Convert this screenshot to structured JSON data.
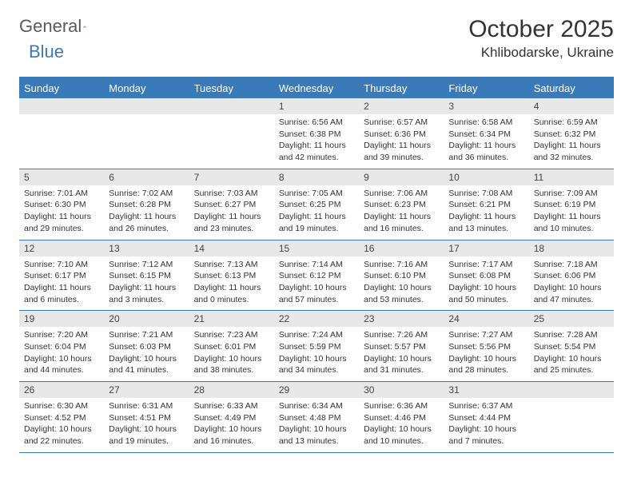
{
  "logo": {
    "general": "General",
    "blue": "Blue"
  },
  "title": "October 2025",
  "location": "Khlibodarske, Ukraine",
  "day_headers": [
    "Sunday",
    "Monday",
    "Tuesday",
    "Wednesday",
    "Thursday",
    "Friday",
    "Saturday"
  ],
  "colors": {
    "header_bg": "#3a7ab8",
    "header_text": "#ffffff",
    "daynum_bg": "#e8e8e8",
    "border": "#3a7ab8",
    "text": "#333333",
    "logo_gray": "#5a5a5a",
    "logo_blue": "#3a7ab8"
  },
  "weeks": [
    [
      null,
      null,
      null,
      {
        "n": "1",
        "sr": "6:56 AM",
        "ss": "6:38 PM",
        "dl": "11 hours and 42 minutes."
      },
      {
        "n": "2",
        "sr": "6:57 AM",
        "ss": "6:36 PM",
        "dl": "11 hours and 39 minutes."
      },
      {
        "n": "3",
        "sr": "6:58 AM",
        "ss": "6:34 PM",
        "dl": "11 hours and 36 minutes."
      },
      {
        "n": "4",
        "sr": "6:59 AM",
        "ss": "6:32 PM",
        "dl": "11 hours and 32 minutes."
      }
    ],
    [
      {
        "n": "5",
        "sr": "7:01 AM",
        "ss": "6:30 PM",
        "dl": "11 hours and 29 minutes."
      },
      {
        "n": "6",
        "sr": "7:02 AM",
        "ss": "6:28 PM",
        "dl": "11 hours and 26 minutes."
      },
      {
        "n": "7",
        "sr": "7:03 AM",
        "ss": "6:27 PM",
        "dl": "11 hours and 23 minutes."
      },
      {
        "n": "8",
        "sr": "7:05 AM",
        "ss": "6:25 PM",
        "dl": "11 hours and 19 minutes."
      },
      {
        "n": "9",
        "sr": "7:06 AM",
        "ss": "6:23 PM",
        "dl": "11 hours and 16 minutes."
      },
      {
        "n": "10",
        "sr": "7:08 AM",
        "ss": "6:21 PM",
        "dl": "11 hours and 13 minutes."
      },
      {
        "n": "11",
        "sr": "7:09 AM",
        "ss": "6:19 PM",
        "dl": "11 hours and 10 minutes."
      }
    ],
    [
      {
        "n": "12",
        "sr": "7:10 AM",
        "ss": "6:17 PM",
        "dl": "11 hours and 6 minutes."
      },
      {
        "n": "13",
        "sr": "7:12 AM",
        "ss": "6:15 PM",
        "dl": "11 hours and 3 minutes."
      },
      {
        "n": "14",
        "sr": "7:13 AM",
        "ss": "6:13 PM",
        "dl": "11 hours and 0 minutes."
      },
      {
        "n": "15",
        "sr": "7:14 AM",
        "ss": "6:12 PM",
        "dl": "10 hours and 57 minutes."
      },
      {
        "n": "16",
        "sr": "7:16 AM",
        "ss": "6:10 PM",
        "dl": "10 hours and 53 minutes."
      },
      {
        "n": "17",
        "sr": "7:17 AM",
        "ss": "6:08 PM",
        "dl": "10 hours and 50 minutes."
      },
      {
        "n": "18",
        "sr": "7:18 AM",
        "ss": "6:06 PM",
        "dl": "10 hours and 47 minutes."
      }
    ],
    [
      {
        "n": "19",
        "sr": "7:20 AM",
        "ss": "6:04 PM",
        "dl": "10 hours and 44 minutes."
      },
      {
        "n": "20",
        "sr": "7:21 AM",
        "ss": "6:03 PM",
        "dl": "10 hours and 41 minutes."
      },
      {
        "n": "21",
        "sr": "7:23 AM",
        "ss": "6:01 PM",
        "dl": "10 hours and 38 minutes."
      },
      {
        "n": "22",
        "sr": "7:24 AM",
        "ss": "5:59 PM",
        "dl": "10 hours and 34 minutes."
      },
      {
        "n": "23",
        "sr": "7:26 AM",
        "ss": "5:57 PM",
        "dl": "10 hours and 31 minutes."
      },
      {
        "n": "24",
        "sr": "7:27 AM",
        "ss": "5:56 PM",
        "dl": "10 hours and 28 minutes."
      },
      {
        "n": "25",
        "sr": "7:28 AM",
        "ss": "5:54 PM",
        "dl": "10 hours and 25 minutes."
      }
    ],
    [
      {
        "n": "26",
        "sr": "6:30 AM",
        "ss": "4:52 PM",
        "dl": "10 hours and 22 minutes."
      },
      {
        "n": "27",
        "sr": "6:31 AM",
        "ss": "4:51 PM",
        "dl": "10 hours and 19 minutes."
      },
      {
        "n": "28",
        "sr": "6:33 AM",
        "ss": "4:49 PM",
        "dl": "10 hours and 16 minutes."
      },
      {
        "n": "29",
        "sr": "6:34 AM",
        "ss": "4:48 PM",
        "dl": "10 hours and 13 minutes."
      },
      {
        "n": "30",
        "sr": "6:36 AM",
        "ss": "4:46 PM",
        "dl": "10 hours and 10 minutes."
      },
      {
        "n": "31",
        "sr": "6:37 AM",
        "ss": "4:44 PM",
        "dl": "10 hours and 7 minutes."
      },
      null
    ]
  ],
  "labels": {
    "sunrise": "Sunrise:",
    "sunset": "Sunset:",
    "daylight": "Daylight:"
  }
}
